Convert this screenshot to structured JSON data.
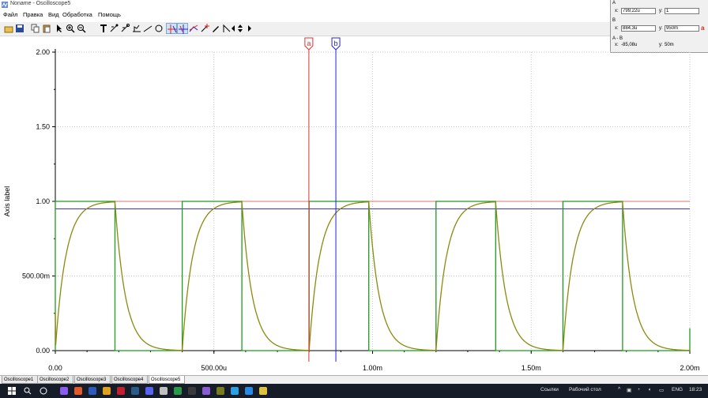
{
  "window": {
    "title": "Noname - Oscilloscope5"
  },
  "menu": [
    "Файл",
    "Правка",
    "Вид",
    "Обработка",
    "Помощь"
  ],
  "toolbar": {
    "icons": [
      "open-icon",
      "save-icon",
      "copy-icon",
      "paste-icon",
      "pointer-icon",
      "zoom-in-icon",
      "zoom-out-icon",
      "text-tool-icon",
      "cursor-tool-icon",
      "marker-tool-icon",
      "multi-marker-icon",
      "line-tool-icon",
      "ellipse-tool-icon",
      "cursor-a-icon",
      "cursor-b-icon",
      "measure-icon",
      "cursor-add-icon",
      "pen-icon",
      "angle-icon",
      "scroll-left-icon",
      "scroll-updown-icon",
      "scroll-right-icon"
    ],
    "pressed": [
      13,
      14
    ]
  },
  "cursors": {
    "a": {
      "label": "A",
      "x_label": "x:",
      "x": "799,22u",
      "y_label": "y:",
      "y": "1"
    },
    "b": {
      "label": "B",
      "x_label": "x:",
      "x": "884,3u",
      "y_label": "y:",
      "y": "950m",
      "marker": "a"
    },
    "diff": {
      "label": "A - B",
      "x_label": "x:",
      "x": "-85,08u",
      "y_label": "y:",
      "y": "50m"
    }
  },
  "chart_data": {
    "type": "line",
    "ylabel": "Axis label",
    "xlim": [
      0,
      0.002
    ],
    "ylim": [
      0,
      2.0
    ],
    "x_ticks": [
      0,
      0.0005,
      0.001,
      0.0015,
      0.002
    ],
    "x_tick_labels": [
      "0.00",
      "500.00u",
      "1.00m",
      "1.50m",
      "2.00m"
    ],
    "y_ticks": [
      0,
      0.5,
      1.0,
      1.5,
      2.0
    ],
    "y_tick_labels": [
      "0.00",
      "500.00m",
      "1.00",
      "1.50",
      "2.00"
    ],
    "grid": "dotted",
    "series": [
      {
        "kind": "square",
        "color": "#1e9a1e",
        "period": 0.0004,
        "high": 1.0,
        "low": 0.0,
        "first_rise": 0.0,
        "duty": 0.47
      },
      {
        "kind": "rc",
        "color": "#8a8a10",
        "period": 0.0004,
        "tau": 3.3e-05,
        "high": 1.0,
        "low": 0.0
      }
    ],
    "cursors": [
      {
        "label": "a",
        "x": 0.00079922,
        "color": "#e03030"
      },
      {
        "label": "b",
        "x": 0.0008843,
        "color": "#2020e0"
      }
    ],
    "levels": [
      {
        "y": 1.0,
        "color": "#e07070"
      },
      {
        "y": 0.95,
        "color": "#3a3aa0"
      }
    ]
  },
  "tabs": {
    "items": [
      "Oscilloscope1",
      "Oscilloscope2",
      "Oscilloscope3",
      "Oscilloscope4",
      "Oscilloscope5"
    ],
    "active": 4
  },
  "taskbar": {
    "icons": [
      "windows-start-icon",
      "search-icon",
      "task-view-icon",
      "app-icon-1",
      "app-icon-2",
      "word-icon",
      "chrome-icon",
      "opera-icon",
      "steam-icon",
      "discord-icon",
      "app-icon-3",
      "app-icon-4",
      "app-icon-5",
      "visual-studio-icon",
      "app-icon-6",
      "telegram-icon",
      "edge-icon",
      "multisim-icon"
    ],
    "links_label": "Ссылки",
    "desktop_label": "Рабочий стол",
    "lang": "ENG",
    "time": "18:23"
  }
}
